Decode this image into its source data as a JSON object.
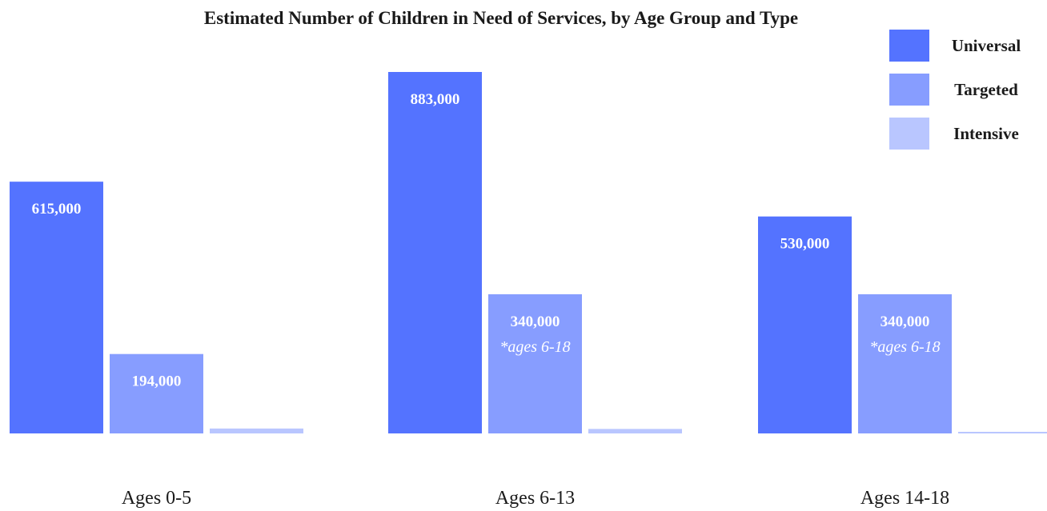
{
  "chart_data": {
    "type": "bar",
    "title": "Estimated Number of Children in Need of Services, by Age Group and Type",
    "categories": [
      "Ages 0-5",
      "Ages 6-13",
      "Ages 14-18"
    ],
    "series": [
      {
        "name": "Universal",
        "color": "#5473ff",
        "values": [
          615000,
          883000,
          530000
        ],
        "labels": [
          "615,000",
          "883,000",
          "530,000"
        ],
        "notes": [
          "",
          "",
          ""
        ]
      },
      {
        "name": "Targeted",
        "color": "#879dff",
        "values": [
          194000,
          340000,
          340000
        ],
        "labels": [
          "194,000",
          "340,000",
          "340,000"
        ],
        "notes": [
          "",
          "*ages 6-18",
          "*ages 6-18"
        ]
      },
      {
        "name": "Intensive",
        "color": "#b9c6ff",
        "values": [
          12000,
          11000,
          3000
        ],
        "labels": [
          "12,000",
          "11,000",
          "3,000"
        ],
        "notes": [
          "",
          "",
          ""
        ]
      }
    ],
    "ylim": [
      0,
      883000
    ],
    "legend_position": "top-right",
    "grid": false
  }
}
